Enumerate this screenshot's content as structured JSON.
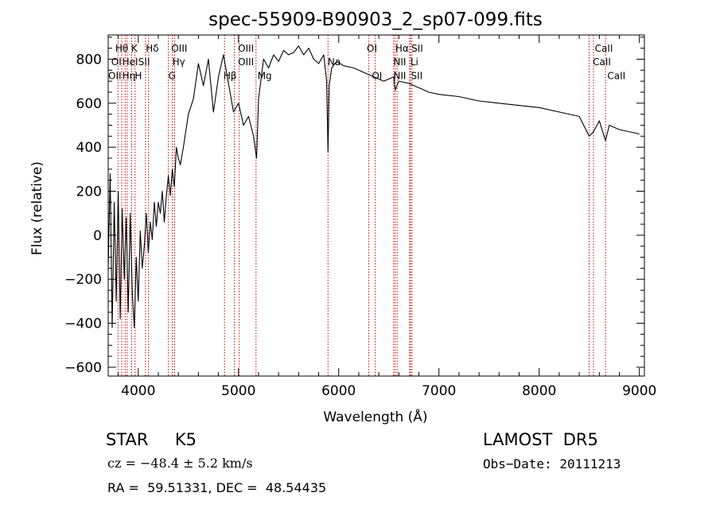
{
  "chart_data": {
    "type": "line",
    "title": "spec-55909-B90903_2_sp07-099.fits",
    "xlabel": "Wavelength (Å)",
    "ylabel": "Flux (relative)",
    "xlim": [
      3700,
      9050
    ],
    "ylim": [
      -640,
      910
    ],
    "x_ticks": [
      4000,
      5000,
      6000,
      7000,
      8000,
      9000
    ],
    "y_ticks": [
      -600,
      -400,
      -200,
      0,
      200,
      400,
      600,
      800
    ],
    "x_minor_step": 200,
    "y_minor_step": 50,
    "grid": false,
    "spectrum": {
      "x": [
        3700,
        3720,
        3740,
        3760,
        3780,
        3800,
        3820,
        3840,
        3860,
        3880,
        3900,
        3920,
        3940,
        3960,
        3980,
        4000,
        4020,
        4040,
        4060,
        4080,
        4100,
        4120,
        4140,
        4160,
        4180,
        4200,
        4220,
        4240,
        4260,
        4280,
        4300,
        4320,
        4340,
        4360,
        4380,
        4400,
        4420,
        4450,
        4500,
        4550,
        4600,
        4650,
        4700,
        4750,
        4800,
        4850,
        4900,
        4950,
        5000,
        5050,
        5100,
        5150,
        5180,
        5200,
        5250,
        5300,
        5350,
        5400,
        5450,
        5500,
        5550,
        5600,
        5650,
        5700,
        5750,
        5800,
        5850,
        5880,
        5893,
        5905,
        5930,
        5980,
        6050,
        6150,
        6250,
        6350,
        6450,
        6550,
        6563,
        6600,
        6700,
        6800,
        6900,
        7000,
        7200,
        7400,
        7600,
        7800,
        8000,
        8200,
        8400,
        8498,
        8542,
        8600,
        8662,
        8700,
        8800,
        9000
      ],
      "y": [
        -150,
        280,
        -420,
        150,
        -300,
        200,
        -380,
        120,
        -200,
        80,
        -350,
        100,
        -250,
        -420,
        -100,
        -300,
        20,
        -150,
        -50,
        100,
        -80,
        60,
        -20,
        150,
        40,
        150,
        100,
        200,
        60,
        180,
        270,
        180,
        300,
        220,
        400,
        350,
        320,
        400,
        550,
        620,
        780,
        680,
        800,
        560,
        720,
        820,
        690,
        560,
        600,
        500,
        540,
        450,
        350,
        620,
        800,
        760,
        820,
        790,
        840,
        820,
        830,
        860,
        820,
        850,
        800,
        780,
        820,
        700,
        380,
        680,
        760,
        790,
        770,
        760,
        740,
        720,
        700,
        720,
        660,
        700,
        690,
        670,
        650,
        640,
        630,
        610,
        600,
        590,
        580,
        560,
        540,
        450,
        470,
        520,
        430,
        500,
        480,
        460
      ]
    },
    "line_markers": [
      {
        "wavelength": 3798,
        "label": "Hθ",
        "row": 0
      },
      {
        "wavelength": 3835,
        "label": "",
        "row": 0
      },
      {
        "wavelength": 3870,
        "label": "Hη",
        "row": 0
      },
      {
        "wavelength": 3889,
        "label": "HeI",
        "row": 0
      },
      {
        "wavelength": 3934,
        "label": "K",
        "row": 0
      },
      {
        "wavelength": 3968,
        "label": "H",
        "row": 0
      },
      {
        "wavelength": 4072,
        "label": "SII",
        "row": 0
      },
      {
        "wavelength": 4102,
        "label": "Hδ",
        "row": 0
      },
      {
        "wavelength": 4300,
        "label": "G",
        "row": 0
      },
      {
        "wavelength": 4340,
        "label": "Hγ",
        "row": 0
      },
      {
        "wavelength": 4363,
        "label": "OIII",
        "row": 0
      },
      {
        "wavelength": 4861,
        "label": "Hβ",
        "row": 0
      },
      {
        "wavelength": 4959,
        "label": "OIII",
        "row": 0
      },
      {
        "wavelength": 5007,
        "label": "OIII",
        "row": 0
      },
      {
        "wavelength": 5175,
        "label": "Mg",
        "row": 0
      },
      {
        "wavelength": 5893,
        "label": "Na",
        "row": 0
      },
      {
        "wavelength": 6300,
        "label": "OI",
        "row": 0
      },
      {
        "wavelength": 6364,
        "label": "OI",
        "row": 0
      },
      {
        "wavelength": 6548,
        "label": "NII",
        "row": 0
      },
      {
        "wavelength": 6563,
        "label": "Hα",
        "row": 0
      },
      {
        "wavelength": 6583,
        "label": "NII",
        "row": 0
      },
      {
        "wavelength": 6708,
        "label": "Li",
        "row": 0
      },
      {
        "wavelength": 6716,
        "label": "SII",
        "row": 0
      },
      {
        "wavelength": 6731,
        "label": "SII",
        "row": 0
      },
      {
        "wavelength": 8498,
        "label": "CaII",
        "row": 0
      },
      {
        "wavelength": 8542,
        "label": "CaII",
        "row": 0
      },
      {
        "wavelength": 8662,
        "label": "CaII",
        "row": 0
      }
    ],
    "line_labels": [
      {
        "text": "Hθ",
        "wavelength": 3770,
        "y": 853
      },
      {
        "text": "K",
        "wavelength": 3930,
        "y": 853
      },
      {
        "text": "Hδ",
        "wavelength": 4075,
        "y": 853
      },
      {
        "text": "OIII",
        "wavelength": 4330,
        "y": 853
      },
      {
        "text": "OIII",
        "wavelength": 4995,
        "y": 853
      },
      {
        "text": "OI",
        "wavelength": 6280,
        "y": 853
      },
      {
        "text": "Hα",
        "wavelength": 6565,
        "y": 853
      },
      {
        "text": "SII",
        "wavelength": 6725,
        "y": 853
      },
      {
        "text": "CaII",
        "wavelength": 8555,
        "y": 853
      },
      {
        "text": "OI",
        "wavelength": 3730,
        "y": 790
      },
      {
        "text": "HeI",
        "wavelength": 3840,
        "y": 790
      },
      {
        "text": "SII",
        "wavelength": 4000,
        "y": 790
      },
      {
        "text": "Hγ",
        "wavelength": 4340,
        "y": 790
      },
      {
        "text": "OIII",
        "wavelength": 4995,
        "y": 790
      },
      {
        "text": "Na",
        "wavelength": 5890,
        "y": 790
      },
      {
        "text": "NII",
        "wavelength": 6545,
        "y": 790
      },
      {
        "text": "Li",
        "wavelength": 6715,
        "y": 790
      },
      {
        "text": "CaII",
        "wavelength": 8535,
        "y": 790
      },
      {
        "text": "OII",
        "wavelength": 3700,
        "y": 728
      },
      {
        "text": "Hη",
        "wavelength": 3840,
        "y": 728
      },
      {
        "text": "H",
        "wavelength": 3965,
        "y": 728
      },
      {
        "text": "G",
        "wavelength": 4300,
        "y": 728
      },
      {
        "text": "Hβ",
        "wavelength": 4850,
        "y": 728
      },
      {
        "text": "Mg",
        "wavelength": 5190,
        "y": 728
      },
      {
        "text": "OI",
        "wavelength": 6330,
        "y": 728
      },
      {
        "text": "NII",
        "wavelength": 6545,
        "y": 728
      },
      {
        "text": "SII",
        "wavelength": 6720,
        "y": 728
      },
      {
        "text": "CaII",
        "wavelength": 8680,
        "y": 728
      }
    ]
  },
  "colors": {
    "spectrum": "#000000",
    "marker": "#cc0000",
    "axes": "#000000"
  },
  "footer": {
    "object": "STAR     K5",
    "survey": "LAMOST  DR5",
    "redshift": "cz = −48.4 ± 5.2 km/s",
    "obs_date": "Obs−Date: 20111213",
    "coords": "RA =  59.51331, DEC =  48.54435"
  }
}
